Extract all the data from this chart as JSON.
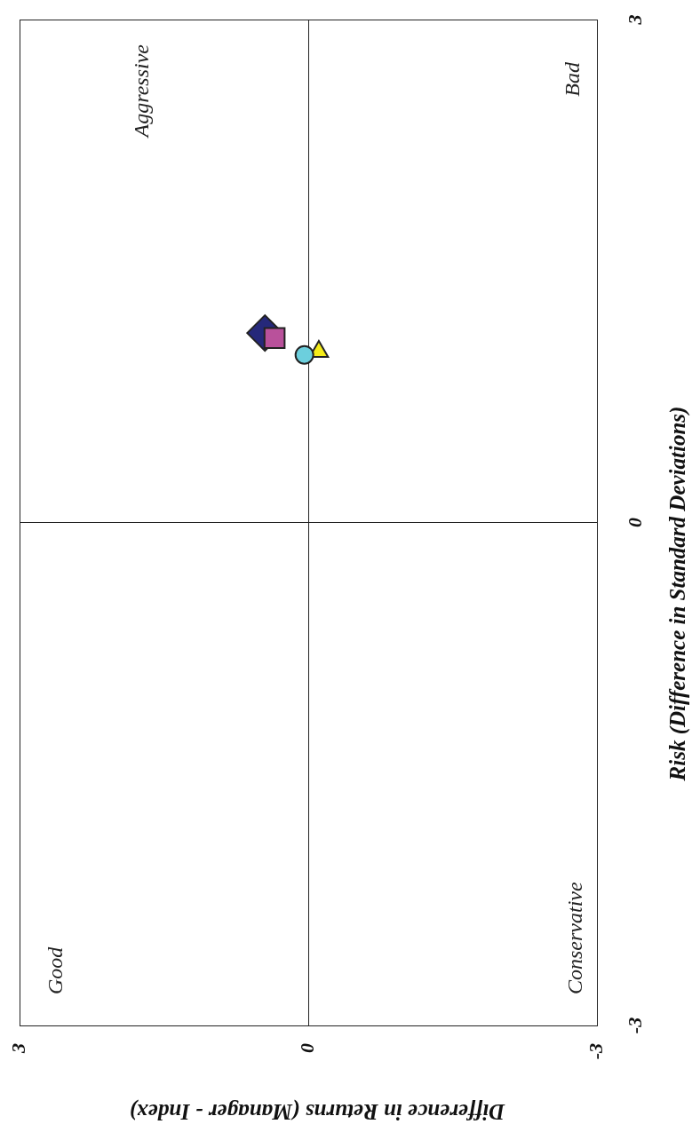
{
  "chart_data": {
    "type": "scatter",
    "xlabel": "Difference in Returns (Manager - Index)",
    "ylabel": "Risk (Difference in Standard Deviations)",
    "xlim": [
      3,
      -3
    ],
    "xticks": [
      3,
      0,
      -3
    ],
    "ylim": [
      -3,
      3
    ],
    "yticks": [
      -3,
      0,
      3
    ],
    "grid": true,
    "legend": false,
    "annotations": [
      "Good",
      "Aggressive",
      "Bad",
      "Conservative"
    ],
    "series": [
      {
        "color": "#25287a",
        "marker": "diamond",
        "x": [
          0.45
        ],
        "values": [
          1.13
        ]
      },
      {
        "color": "#b9519b",
        "marker": "square",
        "x": [
          0.35
        ],
        "values": [
          1.1
        ]
      },
      {
        "color": "#f5ec19",
        "marker": "triangle",
        "x": [
          -0.11
        ],
        "values": [
          1.02
        ]
      },
      {
        "color": "#6ccfdd",
        "marker": "circle",
        "x": [
          0.04
        ],
        "values": [
          1.0
        ]
      }
    ]
  }
}
